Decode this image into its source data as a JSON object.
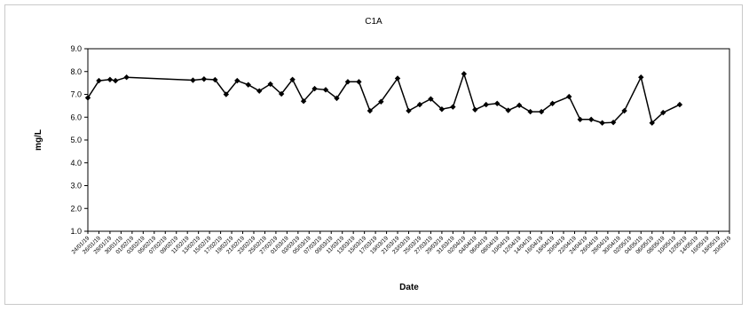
{
  "chart_data": {
    "type": "line",
    "title": "C1A",
    "xlabel": "Date",
    "ylabel": "mg/L",
    "ylim": [
      1.0,
      9.0
    ],
    "ytick_labels": [
      "1.0",
      "2.0",
      "3.0",
      "4.0",
      "5.0",
      "6.0",
      "7.0",
      "8.0",
      "9.0"
    ],
    "grid": false,
    "legend": "none",
    "line_color": "#000000",
    "marker": "diamond",
    "x_tick_labels": [
      "24/01/19",
      "26/01/19",
      "28/01/19",
      "30/01/19",
      "01/02/19",
      "03/02/19",
      "05/02/19",
      "07/02/19",
      "09/02/19",
      "11/02/19",
      "13/02/19",
      "15/02/19",
      "17/02/19",
      "19/02/19",
      "21/02/19",
      "23/02/19",
      "25/02/19",
      "27/02/19",
      "01/03/19",
      "03/03/19",
      "05/03/19",
      "07/03/19",
      "09/03/19",
      "11/03/19",
      "13/03/19",
      "15/03/19",
      "17/03/19",
      "19/03/19",
      "21/03/19",
      "23/03/19",
      "25/03/19",
      "27/03/19",
      "29/03/19",
      "31/03/19",
      "02/04/19",
      "04/04/19",
      "06/04/19",
      "08/04/19",
      "10/04/19",
      "12/04/19",
      "14/04/19",
      "16/04/19",
      "18/04/19",
      "20/04/19",
      "22/04/19",
      "24/04/19",
      "26/04/19",
      "28/04/19",
      "30/04/19",
      "02/05/19",
      "04/05/19",
      "06/05/19",
      "08/05/19",
      "10/05/19",
      "12/05/19",
      "14/05/19",
      "16/05/19",
      "18/05/19",
      "20/05/19"
    ],
    "points": [
      {
        "x": "24/01/19",
        "y": 6.85
      },
      {
        "x": "26/01/19",
        "y": 7.6
      },
      {
        "x": "28/01/19",
        "y": 7.65
      },
      {
        "x": "29/01/19",
        "y": 7.6
      },
      {
        "x": "31/01/19",
        "y": 7.75
      },
      {
        "x": "12/02/19",
        "y": 7.62
      },
      {
        "x": "14/02/19",
        "y": 7.67
      },
      {
        "x": "16/02/19",
        "y": 7.64
      },
      {
        "x": "18/02/19",
        "y": 7.0
      },
      {
        "x": "20/02/19",
        "y": 7.6
      },
      {
        "x": "22/02/19",
        "y": 7.42
      },
      {
        "x": "24/02/19",
        "y": 7.15
      },
      {
        "x": "26/02/19",
        "y": 7.45
      },
      {
        "x": "28/02/19",
        "y": 7.02
      },
      {
        "x": "02/03/19",
        "y": 7.65
      },
      {
        "x": "04/03/19",
        "y": 6.7
      },
      {
        "x": "06/03/19",
        "y": 7.25
      },
      {
        "x": "08/03/19",
        "y": 7.2
      },
      {
        "x": "10/03/19",
        "y": 6.83
      },
      {
        "x": "12/03/19",
        "y": 7.55
      },
      {
        "x": "14/03/19",
        "y": 7.55
      },
      {
        "x": "16/03/19",
        "y": 6.28
      },
      {
        "x": "18/03/19",
        "y": 6.68
      },
      {
        "x": "21/03/19",
        "y": 7.7
      },
      {
        "x": "23/03/19",
        "y": 6.28
      },
      {
        "x": "25/03/19",
        "y": 6.55
      },
      {
        "x": "27/03/19",
        "y": 6.8
      },
      {
        "x": "29/03/19",
        "y": 6.35
      },
      {
        "x": "31/03/19",
        "y": 6.45
      },
      {
        "x": "02/04/19",
        "y": 7.9
      },
      {
        "x": "04/04/19",
        "y": 6.33
      },
      {
        "x": "06/04/19",
        "y": 6.55
      },
      {
        "x": "08/04/19",
        "y": 6.6
      },
      {
        "x": "10/04/19",
        "y": 6.3
      },
      {
        "x": "12/04/19",
        "y": 6.52
      },
      {
        "x": "14/04/19",
        "y": 6.24
      },
      {
        "x": "16/04/19",
        "y": 6.24
      },
      {
        "x": "18/04/19",
        "y": 6.6
      },
      {
        "x": "21/04/19",
        "y": 6.9
      },
      {
        "x": "23/04/19",
        "y": 5.9
      },
      {
        "x": "25/04/19",
        "y": 5.9
      },
      {
        "x": "27/04/19",
        "y": 5.75
      },
      {
        "x": "29/04/19",
        "y": 5.77
      },
      {
        "x": "01/05/19",
        "y": 6.28
      },
      {
        "x": "04/05/19",
        "y": 7.75
      },
      {
        "x": "06/05/19",
        "y": 5.75
      },
      {
        "x": "08/05/19",
        "y": 6.2
      },
      {
        "x": "11/05/19",
        "y": 6.55
      }
    ]
  }
}
